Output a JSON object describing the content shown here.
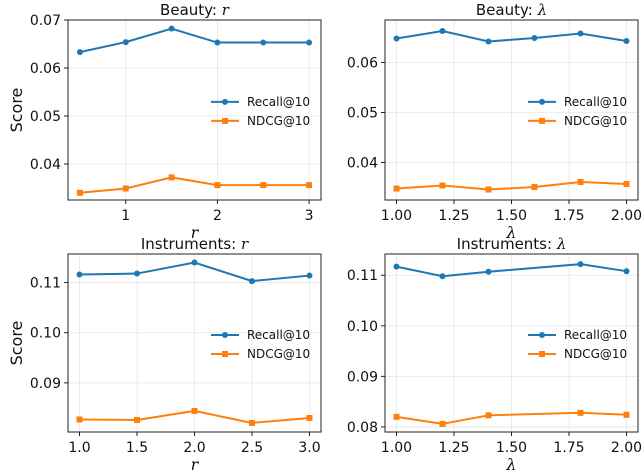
{
  "colors": {
    "recall": "#1f77b4",
    "ndcg": "#ff7f0e"
  },
  "chart_data": [
    {
      "type": "line",
      "title_prefix": "Beauty: ",
      "title_symbol": "r",
      "xlabel": "r",
      "ylabel": "Score",
      "x": [
        0.5,
        1.0,
        1.5,
        2.0,
        2.5,
        3.0
      ],
      "xlim": [
        0.37,
        3.13
      ],
      "ylim": [
        0.0325,
        0.07
      ],
      "xticks": [
        1,
        2,
        3
      ],
      "xtick_labels": [
        "1",
        "2",
        "3"
      ],
      "yticks": [
        0.04,
        0.05,
        0.06,
        0.07
      ],
      "ytick_labels": [
        "0.04",
        "0.05",
        "0.06",
        "0.07"
      ],
      "series": [
        {
          "name": "Recall@10",
          "marker": "circle",
          "values": [
            0.0633,
            0.0654,
            0.0682,
            0.0653,
            0.0653,
            0.0653
          ]
        },
        {
          "name": "NDCG@10",
          "marker": "square",
          "values": [
            0.034,
            0.0349,
            0.0372,
            0.0356,
            0.0356,
            0.0356
          ]
        }
      ],
      "legend": "center-right",
      "grid": true
    },
    {
      "type": "line",
      "title_prefix": "Beauty: ",
      "title_symbol": "λ",
      "xlabel": "λ",
      "ylabel": "",
      "x": [
        1.0,
        1.2,
        1.4,
        1.6,
        1.8,
        2.0
      ],
      "xlim": [
        0.95,
        2.05
      ],
      "ylim": [
        0.0325,
        0.0685
      ],
      "xticks": [
        1.0,
        1.25,
        1.5,
        1.75,
        2.0
      ],
      "xtick_labels": [
        "1.00",
        "1.25",
        "1.50",
        "1.75",
        "2.00"
      ],
      "yticks": [
        0.04,
        0.05,
        0.06
      ],
      "ytick_labels": [
        "0.04",
        "0.05",
        "0.06"
      ],
      "series": [
        {
          "name": "Recall@10",
          "marker": "circle",
          "values": [
            0.0648,
            0.0663,
            0.0642,
            0.0649,
            0.0658,
            0.0643
          ]
        },
        {
          "name": "NDCG@10",
          "marker": "square",
          "values": [
            0.0348,
            0.0354,
            0.0346,
            0.0351,
            0.0361,
            0.0357
          ]
        }
      ],
      "legend": "center-right",
      "grid": true
    },
    {
      "type": "line",
      "title_prefix": "Instruments: ",
      "title_symbol": "r",
      "xlabel": "r",
      "ylabel": "Score",
      "x": [
        1.0,
        1.5,
        2.0,
        2.5,
        3.0
      ],
      "xlim": [
        0.9,
        3.1
      ],
      "ylim": [
        0.0802,
        0.1157
      ],
      "xticks": [
        1.0,
        1.5,
        2.0,
        2.5,
        3.0
      ],
      "xtick_labels": [
        "1.0",
        "1.5",
        "2.0",
        "2.5",
        "3.0"
      ],
      "yticks": [
        0.09,
        0.1,
        0.11
      ],
      "ytick_labels": [
        "0.09",
        "0.10",
        "0.11"
      ],
      "series": [
        {
          "name": "Recall@10",
          "marker": "circle",
          "values": [
            0.1116,
            0.1118,
            0.114,
            0.1103,
            0.1114
          ]
        },
        {
          "name": "NDCG@10",
          "marker": "square",
          "values": [
            0.0827,
            0.0826,
            0.0844,
            0.082,
            0.083
          ]
        }
      ],
      "legend": "center-right",
      "grid": true
    },
    {
      "type": "line",
      "title_prefix": "Instruments: ",
      "title_symbol": "λ",
      "xlabel": "λ",
      "ylabel": "",
      "x": [
        1.0,
        1.2,
        1.4,
        1.8,
        2.0
      ],
      "xlim": [
        0.95,
        2.05
      ],
      "ylim": [
        0.079,
        0.1142
      ],
      "xticks": [
        1.0,
        1.25,
        1.5,
        1.75,
        2.0
      ],
      "xtick_labels": [
        "1.00",
        "1.25",
        "1.50",
        "1.75",
        "2.00"
      ],
      "yticks": [
        0.08,
        0.09,
        0.1,
        0.11
      ],
      "ytick_labels": [
        "0.08",
        "0.09",
        "0.10",
        "0.11"
      ],
      "series": [
        {
          "name": "Recall@10",
          "marker": "circle",
          "values": [
            0.1117,
            0.1098,
            0.1107,
            0.1122,
            0.1108
          ]
        },
        {
          "name": "NDCG@10",
          "marker": "square",
          "values": [
            0.082,
            0.0806,
            0.0823,
            0.0828,
            0.0824
          ]
        }
      ],
      "legend": "center-right",
      "grid": true
    }
  ]
}
